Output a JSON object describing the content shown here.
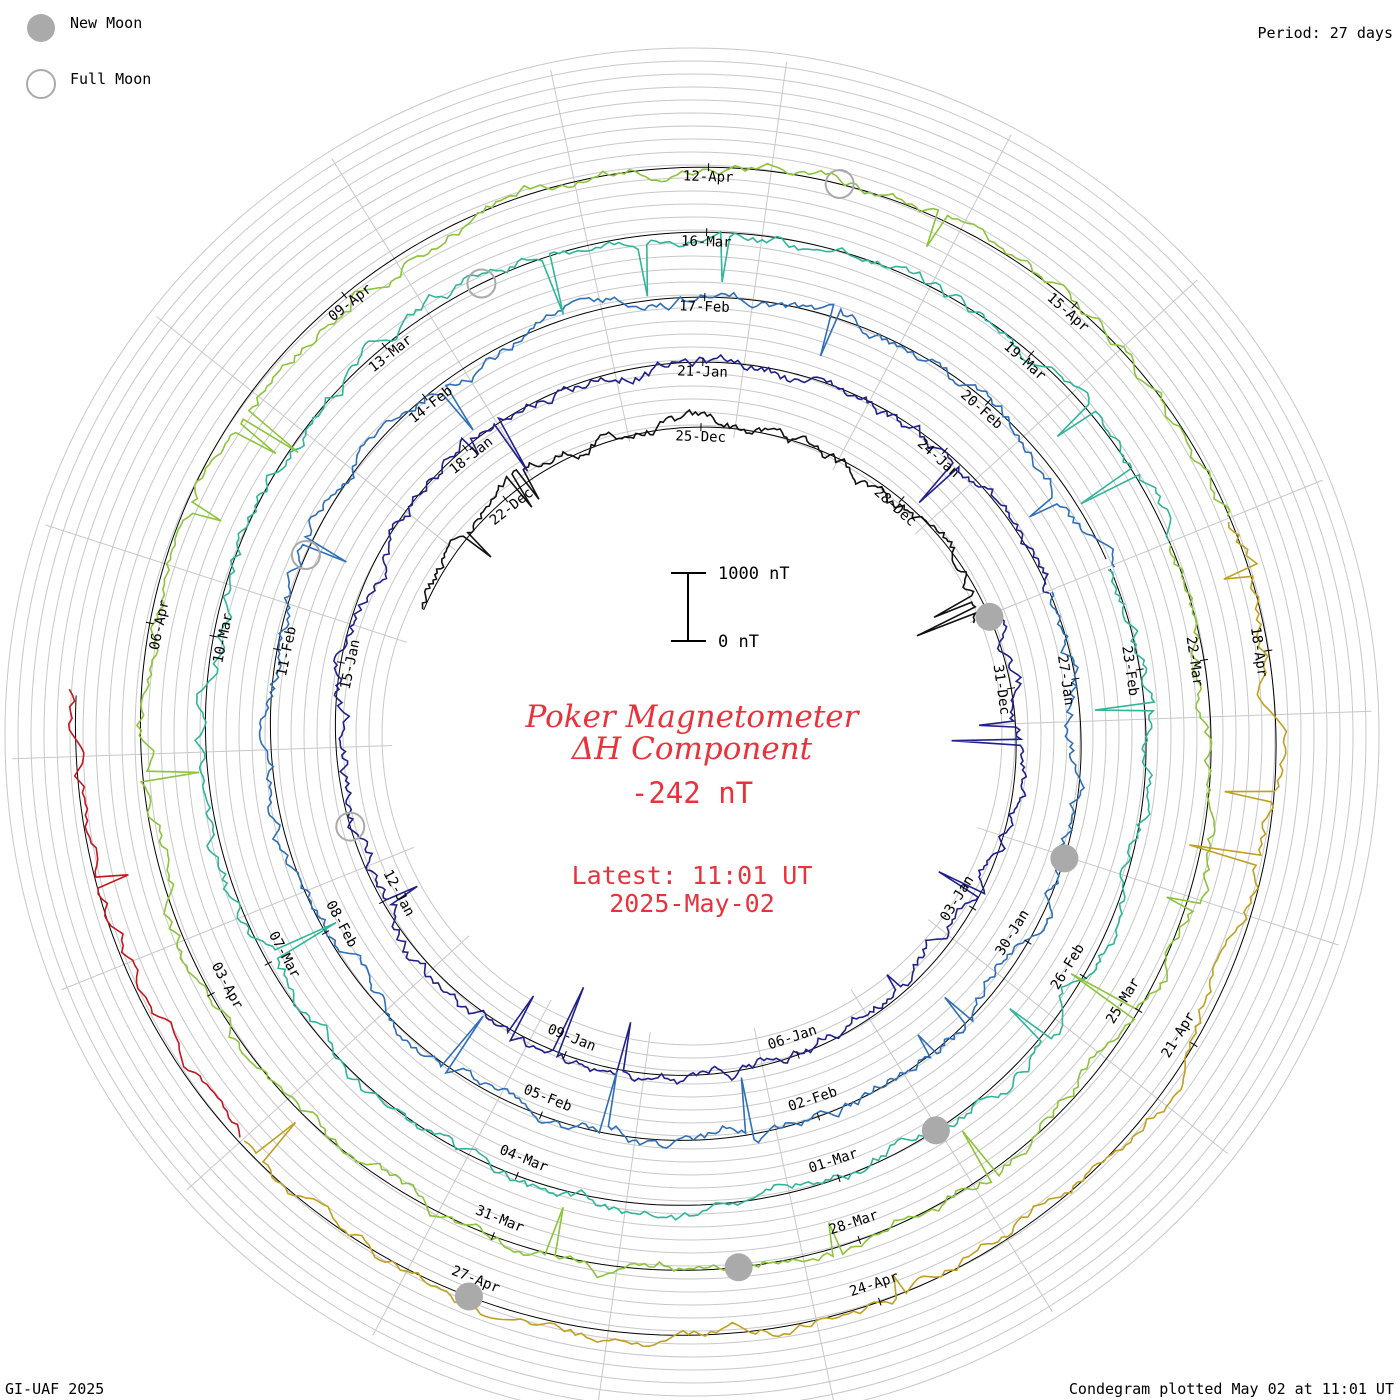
{
  "legend": {
    "new_moon": "New Moon",
    "full_moon": "Full Moon",
    "new_moon_color": "#aaaaaa",
    "full_moon_color": "#aaaaaa"
  },
  "period": "Period: 27 days",
  "credit": "GI-UAF 2025",
  "plotted": "Condegram plotted May 02 at 11:01 UT",
  "chart_data": {
    "type": "line",
    "title_line1": "Poker Magnetometer",
    "title_line2": "ΔH Component",
    "current_value": "-242 nT",
    "latest_line1": "Latest: 11:01 UT",
    "latest_line2": "2025-May-02",
    "scale_top_label": "1000 nT",
    "scale_bottom_label": "0 nT",
    "scale_nT": [
      0,
      1000
    ],
    "period_days": 27,
    "series": [
      {
        "color": "#111111",
        "start": "2024-12-20",
        "dates": [
          "22-Dec",
          "25-Dec",
          "28-Dec"
        ]
      },
      {
        "color": "#20208c",
        "start": "2024-12-30",
        "dates": [
          "31-Dec",
          "03-Jan",
          "06-Jan",
          "09-Jan",
          "12-Jan",
          "15-Jan",
          "18-Jan",
          "21-Jan",
          "24-Jan"
        ]
      },
      {
        "color": "#2f6fb8",
        "start": "2025-01-26",
        "dates": [
          "27-Jan",
          "30-Jan",
          "02-Feb",
          "05-Feb",
          "08-Feb",
          "11-Feb",
          "14-Feb",
          "17-Feb",
          "20-Feb"
        ]
      },
      {
        "color": "#2fb59a",
        "start": "2025-02-22",
        "dates": [
          "23-Feb",
          "26-Feb",
          "01-Mar",
          "04-Mar",
          "07-Mar",
          "10-Mar",
          "13-Mar",
          "16-Mar",
          "19-Mar"
        ]
      },
      {
        "color": "#8cc43a",
        "start": "2025-03-21",
        "dates": [
          "22-Mar",
          "25-Mar",
          "28-Mar",
          "31-Mar",
          "03-Apr",
          "06-Apr",
          "09-Apr",
          "12-Apr",
          "15-Apr"
        ]
      },
      {
        "color": "#c0a020",
        "start": "2025-04-17",
        "dates": [
          "18-Apr",
          "21-Apr",
          "24-Apr",
          "27-Apr"
        ]
      },
      {
        "color": "#c8141e",
        "start": "2025-04-29",
        "dates": []
      }
    ],
    "new_moons": [
      "2024-12-30",
      "2025-01-29",
      "2025-02-28",
      "2025-03-29",
      "2025-04-27"
    ],
    "full_moons": [
      "2025-01-13",
      "2025-02-12",
      "2025-03-14",
      "2025-04-13"
    ]
  }
}
